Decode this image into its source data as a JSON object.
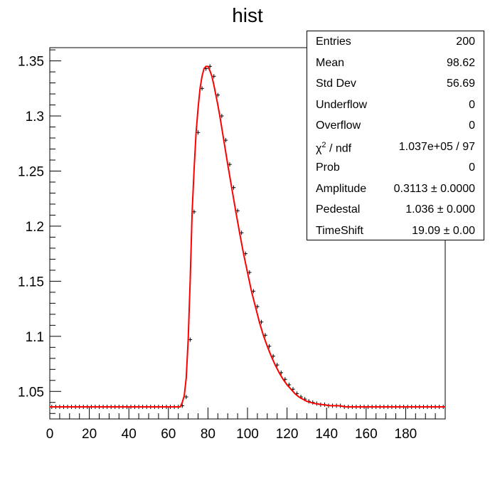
{
  "chart_data": {
    "type": "line",
    "title": "hist",
    "xlabel": "",
    "ylabel": "",
    "xlim": [
      0,
      200
    ],
    "ylim": [
      1.025,
      1.362
    ],
    "x_ticks": [
      0,
      20,
      40,
      60,
      80,
      100,
      120,
      140,
      160,
      180
    ],
    "y_ticks": [
      1.05,
      1.1,
      1.15,
      1.2,
      1.25,
      1.3,
      1.35
    ],
    "y_tick_labels": [
      "1.05",
      "1.1",
      "1.15",
      "1.2",
      "1.25",
      "1.3",
      "1.35"
    ],
    "grid": false,
    "series": [
      {
        "style": "histogram-points",
        "color": "#000000",
        "x": [
          1,
          3,
          5,
          7,
          9,
          11,
          13,
          15,
          17,
          19,
          21,
          23,
          25,
          27,
          29,
          31,
          33,
          35,
          37,
          39,
          41,
          43,
          45,
          47,
          49,
          51,
          53,
          55,
          57,
          59,
          61,
          63,
          65,
          67,
          69,
          71,
          73,
          75,
          77,
          79,
          81,
          83,
          85,
          87,
          89,
          91,
          93,
          95,
          97,
          99,
          101,
          103,
          105,
          107,
          109,
          111,
          113,
          115,
          117,
          119,
          121,
          123,
          125,
          127,
          129,
          131,
          133,
          135,
          137,
          139,
          141,
          143,
          145,
          147,
          149,
          151,
          153,
          155,
          157,
          159,
          161,
          163,
          165,
          167,
          169,
          171,
          173,
          175,
          177,
          179,
          181,
          183,
          185,
          187,
          189,
          191,
          193,
          195,
          197,
          199
        ],
        "values": [
          1.036,
          1.036,
          1.036,
          1.036,
          1.036,
          1.036,
          1.036,
          1.036,
          1.036,
          1.036,
          1.036,
          1.036,
          1.036,
          1.036,
          1.036,
          1.036,
          1.036,
          1.036,
          1.036,
          1.036,
          1.036,
          1.036,
          1.036,
          1.036,
          1.036,
          1.036,
          1.036,
          1.036,
          1.036,
          1.036,
          1.036,
          1.036,
          1.036,
          1.037,
          1.045,
          1.097,
          1.213,
          1.285,
          1.325,
          1.343,
          1.345,
          1.336,
          1.319,
          1.3,
          1.278,
          1.256,
          1.235,
          1.214,
          1.194,
          1.175,
          1.158,
          1.141,
          1.127,
          1.113,
          1.101,
          1.091,
          1.082,
          1.074,
          1.067,
          1.061,
          1.056,
          1.052,
          1.048,
          1.045,
          1.043,
          1.041,
          1.04,
          1.039,
          1.038,
          1.038,
          1.037,
          1.037,
          1.037,
          1.037,
          1.036,
          1.036,
          1.036,
          1.036,
          1.036,
          1.036,
          1.036,
          1.036,
          1.036,
          1.036,
          1.036,
          1.036,
          1.036,
          1.036,
          1.036,
          1.036,
          1.036,
          1.036,
          1.036,
          1.036,
          1.036,
          1.036,
          1.036,
          1.036,
          1.036,
          1.036
        ]
      },
      {
        "style": "fit-line",
        "color": "#ff0000",
        "x": [
          0,
          10,
          20,
          30,
          40,
          50,
          60,
          66,
          67,
          68,
          69,
          70,
          71,
          72,
          73,
          74,
          75,
          76,
          77,
          78,
          79,
          80,
          81,
          82,
          83,
          84,
          85,
          86,
          87,
          88,
          89,
          90,
          92,
          94,
          96,
          98,
          100,
          102,
          104,
          106,
          108,
          110,
          112,
          114,
          116,
          118,
          120,
          122,
          124,
          126,
          128,
          130,
          134,
          138,
          142,
          146,
          150,
          155,
          160,
          170,
          180,
          190,
          200
        ],
        "values": [
          1.036,
          1.036,
          1.036,
          1.036,
          1.036,
          1.036,
          1.036,
          1.036,
          1.04,
          1.046,
          1.062,
          1.097,
          1.15,
          1.213,
          1.252,
          1.285,
          1.307,
          1.325,
          1.336,
          1.343,
          1.345,
          1.345,
          1.341,
          1.336,
          1.328,
          1.319,
          1.31,
          1.3,
          1.289,
          1.278,
          1.267,
          1.256,
          1.235,
          1.214,
          1.194,
          1.175,
          1.158,
          1.141,
          1.127,
          1.113,
          1.101,
          1.091,
          1.082,
          1.074,
          1.067,
          1.061,
          1.056,
          1.052,
          1.048,
          1.045,
          1.043,
          1.041,
          1.039,
          1.038,
          1.037,
          1.037,
          1.036,
          1.036,
          1.036,
          1.036,
          1.036,
          1.036,
          1.036
        ]
      }
    ]
  },
  "stats": {
    "rows": [
      {
        "key": "Entries",
        "value": "200"
      },
      {
        "key": "Mean",
        "value": "98.62"
      },
      {
        "key": "Std Dev",
        "value": "56.69"
      },
      {
        "key": "Underflow",
        "value": "0"
      },
      {
        "key": "Overflow",
        "value": "0"
      },
      {
        "key": "χ",
        "key_sup": "2",
        "key_tail": " / ndf",
        "value": "1.037e+05 / 97"
      },
      {
        "key": "Prob",
        "value": "0"
      },
      {
        "key": "Amplitude",
        "value": "0.3113 ± 0.0000"
      },
      {
        "key": "Pedestal",
        "value": "1.036 ± 0.000"
      },
      {
        "key": "TimeShift",
        "value": "19.09 ± 0.00"
      }
    ]
  }
}
